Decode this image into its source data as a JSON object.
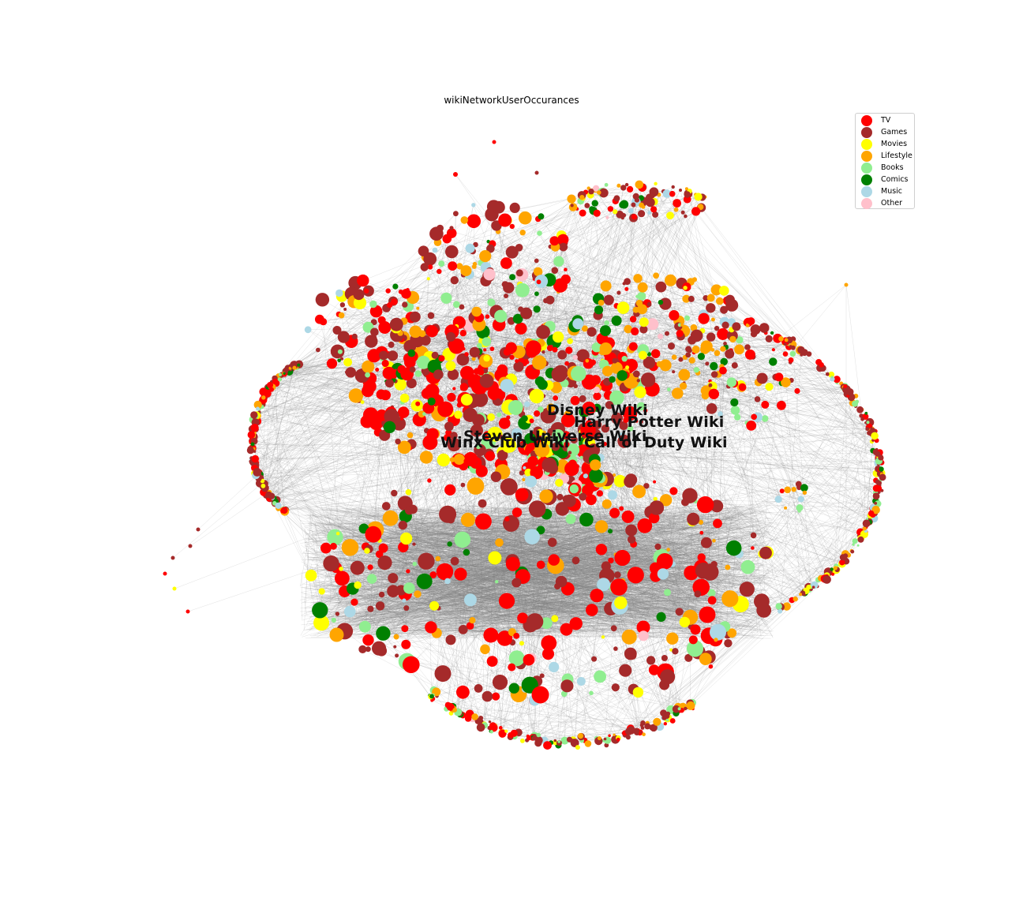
{
  "title": "wikiNetworkUserOccurances",
  "legend": [
    {
      "label": "TV",
      "color": "#ff0000",
      "key": "tv"
    },
    {
      "label": "Games",
      "color": "#a52a2a",
      "key": "games"
    },
    {
      "label": "Movies",
      "color": "#ffff00",
      "key": "movies"
    },
    {
      "label": "Lifestyle",
      "color": "#ffa500",
      "key": "lifestyle"
    },
    {
      "label": "Books",
      "color": "#90ee90",
      "key": "books"
    },
    {
      "label": "Comics",
      "color": "#008000",
      "key": "comics"
    },
    {
      "label": "Music",
      "color": "#add8e6",
      "key": "music"
    },
    {
      "label": "Other",
      "color": "#ffc0cb",
      "key": "other"
    }
  ],
  "hub_labels": [
    {
      "text": "Disney Wiki"
    },
    {
      "text": "Harry Potter Wiki"
    },
    {
      "text": "Steven Universe Wiki"
    },
    {
      "text": "Winx Club Wiki"
    },
    {
      "text": "Call of Duty Wiki"
    }
  ],
  "edge_color": "#808080"
}
